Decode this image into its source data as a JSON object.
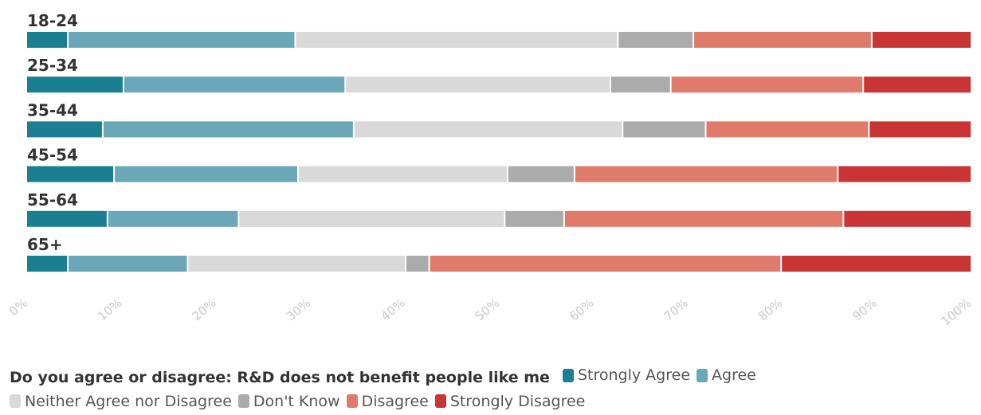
{
  "chart_data": {
    "type": "bar",
    "orientation": "horizontal",
    "stacked": true,
    "categories": [
      "18-24",
      "25-34",
      "35-44",
      "45-54",
      "55-64",
      "65+"
    ],
    "xlim": [
      0,
      100
    ],
    "xticks": [
      "0%",
      "10%",
      "20%",
      "30%",
      "40%",
      "50%",
      "60%",
      "70%",
      "80%",
      "90%",
      "100%"
    ],
    "legend_title": "Do you agree or disagree: R&D does not benefit people like me",
    "legend_position": "bottom",
    "series": [
      {
        "name": "Strongly Agree",
        "color": "#1c7f91",
        "values": [
          4.4,
          10.3,
          8.1,
          9.3,
          8.6,
          4.4
        ]
      },
      {
        "name": "Agree",
        "color": "#6aa7b8",
        "values": [
          24.1,
          23.5,
          26.6,
          19.5,
          13.9,
          12.7
        ]
      },
      {
        "name": "Neither Agree nor Disagree",
        "color": "#d9d9d9",
        "values": [
          34.2,
          28.1,
          28.5,
          22.2,
          28.2,
          23.1
        ]
      },
      {
        "name": "Don't Know",
        "color": "#ababab",
        "values": [
          8.0,
          6.4,
          8.8,
          7.1,
          6.3,
          2.5
        ]
      },
      {
        "name": "Disagree",
        "color": "#e07b6c",
        "values": [
          18.9,
          20.4,
          17.3,
          27.9,
          29.6,
          37.3
        ]
      },
      {
        "name": "Strongly Disagree",
        "color": "#c93434",
        "values": [
          10.4,
          11.3,
          10.7,
          14.0,
          13.4,
          20.0
        ]
      }
    ]
  }
}
